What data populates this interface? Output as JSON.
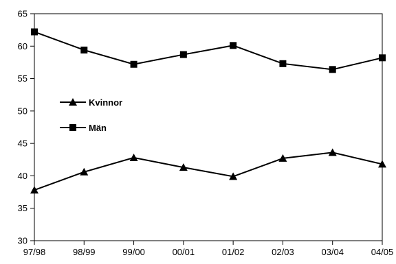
{
  "chart_data": {
    "type": "line",
    "title": "",
    "xlabel": "",
    "ylabel": "",
    "categories": [
      "97/98",
      "98/99",
      "99/00",
      "00/01",
      "01/02",
      "02/03",
      "03/04",
      "04/05"
    ],
    "ylim": [
      30,
      65
    ],
    "yticks": [
      30,
      35,
      40,
      45,
      50,
      55,
      60,
      65
    ],
    "grid": false,
    "legend_position": "left",
    "series": [
      {
        "name": "Kvinnor",
        "marker": "triangle",
        "values": [
          37.8,
          40.6,
          42.8,
          41.3,
          39.9,
          42.7,
          43.6,
          41.8
        ]
      },
      {
        "name": "Män",
        "marker": "square",
        "values": [
          62.2,
          59.4,
          57.2,
          58.7,
          60.1,
          57.3,
          56.4,
          58.2
        ]
      }
    ]
  }
}
